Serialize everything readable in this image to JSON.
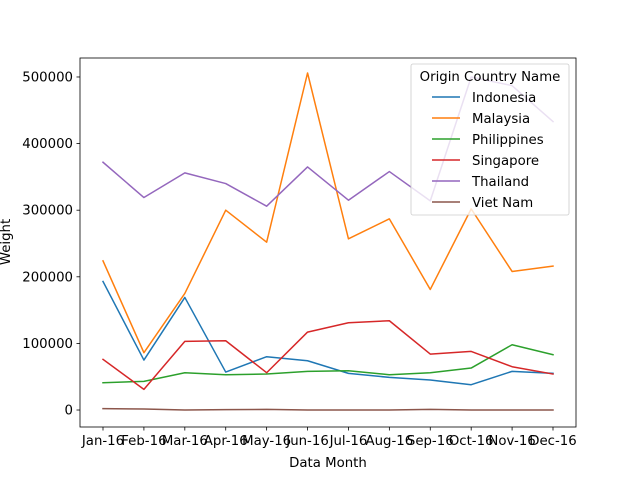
{
  "chart_data": {
    "type": "line",
    "title": "",
    "xlabel": "Data Month",
    "ylabel": "Weight",
    "categories": [
      "Jan-16",
      "Feb-16",
      "Mar-16",
      "Apr-16",
      "May-16",
      "Jun-16",
      "Jul-16",
      "Aug-16",
      "Sep-16",
      "Oct-16",
      "Nov-16",
      "Dec-16"
    ],
    "ylim": [
      -25500,
      528500
    ],
    "yticks": [
      0,
      100000,
      200000,
      300000,
      400000,
      500000
    ],
    "ytick_labels": [
      "0",
      "100000",
      "200000",
      "300000",
      "400000",
      "500000"
    ],
    "grid": false,
    "legend": {
      "title": "Origin Country Name",
      "placement": "top-right"
    },
    "series": [
      {
        "name": "Indonesia",
        "color": "#1f77b4",
        "values": [
          193000,
          75000,
          169000,
          57000,
          80000,
          74000,
          55000,
          49000,
          45000,
          38000,
          58000,
          55000
        ]
      },
      {
        "name": "Malaysia",
        "color": "#ff7f0e",
        "values": [
          224000,
          86000,
          175000,
          300000,
          252000,
          506000,
          257000,
          287000,
          181000,
          302000,
          208000,
          216000
        ]
      },
      {
        "name": "Philippines",
        "color": "#2ca02c",
        "values": [
          41000,
          43000,
          56000,
          53000,
          54000,
          58000,
          59000,
          53000,
          56000,
          63000,
          98000,
          83000
        ]
      },
      {
        "name": "Singapore",
        "color": "#d62728",
        "values": [
          76000,
          31000,
          103000,
          104000,
          56000,
          117000,
          131000,
          134000,
          84000,
          88000,
          65000,
          54000
        ]
      },
      {
        "name": "Thailand",
        "color": "#9467bd",
        "values": [
          372000,
          319000,
          356000,
          340000,
          306000,
          365000,
          315000,
          358000,
          314000,
          500000,
          487000,
          433000
        ]
      },
      {
        "name": "Viet Nam",
        "color": "#8c564b",
        "values": [
          2000,
          1500,
          0,
          500,
          1000,
          0,
          0,
          0,
          1000,
          0,
          0,
          0
        ]
      }
    ]
  }
}
